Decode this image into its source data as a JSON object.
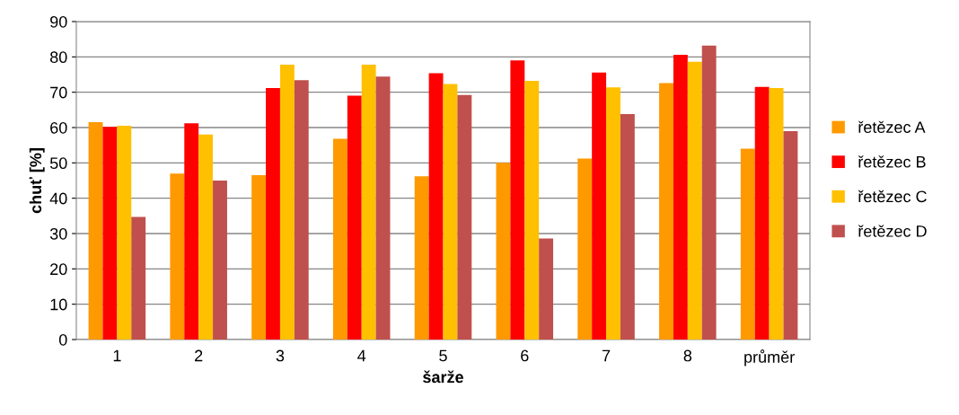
{
  "chart_data": {
    "type": "bar",
    "xlabel": "šarže",
    "ylabel": "chuť [%]",
    "categories": [
      "1",
      "2",
      "3",
      "4",
      "5",
      "6",
      "7",
      "8",
      "průměr"
    ],
    "series": [
      {
        "name": "řetězec A",
        "color": "#ff9900",
        "values": [
          61.5,
          47,
          46.5,
          56.8,
          46.2,
          50,
          51.2,
          72.6,
          54
        ]
      },
      {
        "name": "řetězec B",
        "color": "#ff0000",
        "values": [
          60.2,
          61.2,
          71.2,
          69,
          75.4,
          79,
          75.6,
          80.6,
          71.5
        ]
      },
      {
        "name": "řetězec C",
        "color": "#ffc000",
        "values": [
          60.5,
          58,
          77.8,
          77.8,
          72.3,
          73.2,
          71.4,
          78.6,
          71.2
        ]
      },
      {
        "name": "řetězec D",
        "color": "#c0504d",
        "values": [
          34.7,
          45,
          73.4,
          74.4,
          69.2,
          28.6,
          63.8,
          83.2,
          59
        ]
      }
    ],
    "ylim": [
      0,
      90
    ],
    "yticks": [
      0,
      10,
      20,
      30,
      40,
      50,
      60,
      70,
      80,
      90
    ],
    "grid": "y",
    "legend": "right"
  }
}
